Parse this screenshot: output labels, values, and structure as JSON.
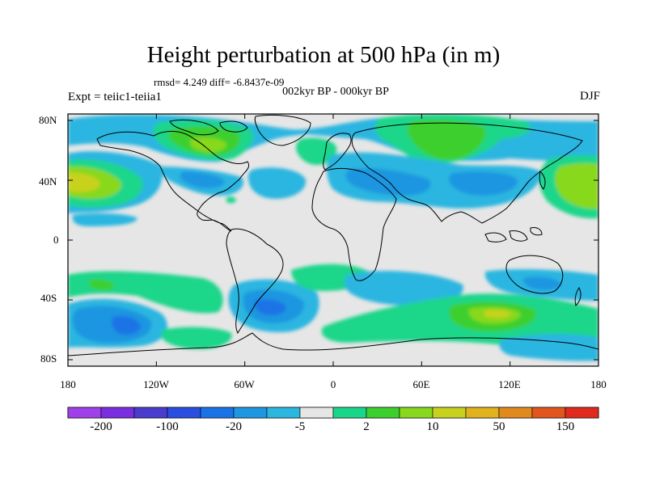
{
  "title": "Height perturbation at 500 hPa (in m)",
  "stats": "rmsd= 4.249 diff= -6.8437e-09",
  "experiment": "Expt = teiic1-teiia1",
  "period": "002kyr BP - 000kyr BP",
  "season": "DJF",
  "map": {
    "background_color": "#e6e6e6",
    "coast_color": "#000000",
    "lat_labels": [
      "80N",
      "40N",
      "0",
      "40S",
      "80S"
    ],
    "lon_labels": [
      "180",
      "120W",
      "60W",
      "0",
      "60E",
      "120E",
      "180"
    ]
  },
  "colorbar": {
    "colors": [
      "#a040e8",
      "#7a2ee0",
      "#4a3ccc",
      "#2a4ee0",
      "#1a73e6",
      "#1e96e0",
      "#2cb6e0",
      "#e6e6e6",
      "#1ad68a",
      "#3ccf2e",
      "#88d81e",
      "#c8d21e",
      "#e0b21e",
      "#e08a1e",
      "#e0561e",
      "#e02a1e"
    ],
    "labels": [
      "-200",
      "-100",
      "-20",
      "-5",
      "2",
      "10",
      "50",
      "150"
    ]
  }
}
